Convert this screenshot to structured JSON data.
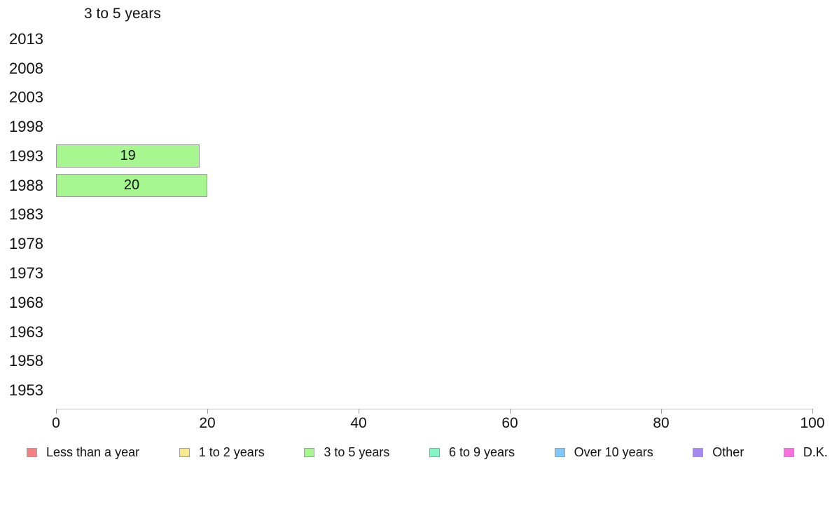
{
  "chart_data": {
    "type": "bar",
    "orientation": "horizontal",
    "title": "3 to 5 years",
    "categories": [
      "2013",
      "2008",
      "2003",
      "1998",
      "1993",
      "1988",
      "1983",
      "1978",
      "1973",
      "1968",
      "1963",
      "1958",
      "1953"
    ],
    "values": [
      null,
      null,
      null,
      null,
      19,
      20,
      null,
      null,
      null,
      null,
      null,
      null,
      null
    ],
    "bar_labels": [
      "",
      "",
      "",
      "",
      "19",
      "20",
      "",
      "",
      "",
      "",
      "",
      "",
      ""
    ],
    "bar_color": "#A6F78F",
    "bar_border_color": "#999999",
    "xlabel": "",
    "ylabel": "",
    "xlim": [
      0,
      100
    ],
    "x_ticks": [
      0,
      20,
      40,
      60,
      80,
      100
    ],
    "grid": false,
    "axis_line_color": "#c4c4c4",
    "text_color": "#111111",
    "legend_position": "bottom",
    "legend": [
      {
        "label": "Less than a year",
        "color": "#F58080"
      },
      {
        "label": "1 to 2 years",
        "color": "#F7E98C"
      },
      {
        "label": "3 to 5 years",
        "color": "#A6F78F"
      },
      {
        "label": "6 to 9 years",
        "color": "#84F5C4"
      },
      {
        "label": "Over 10 years",
        "color": "#7FC8F8"
      },
      {
        "label": "Other",
        "color": "#A48AF0"
      },
      {
        "label": "D.K.",
        "color": "#F870E0"
      }
    ]
  }
}
